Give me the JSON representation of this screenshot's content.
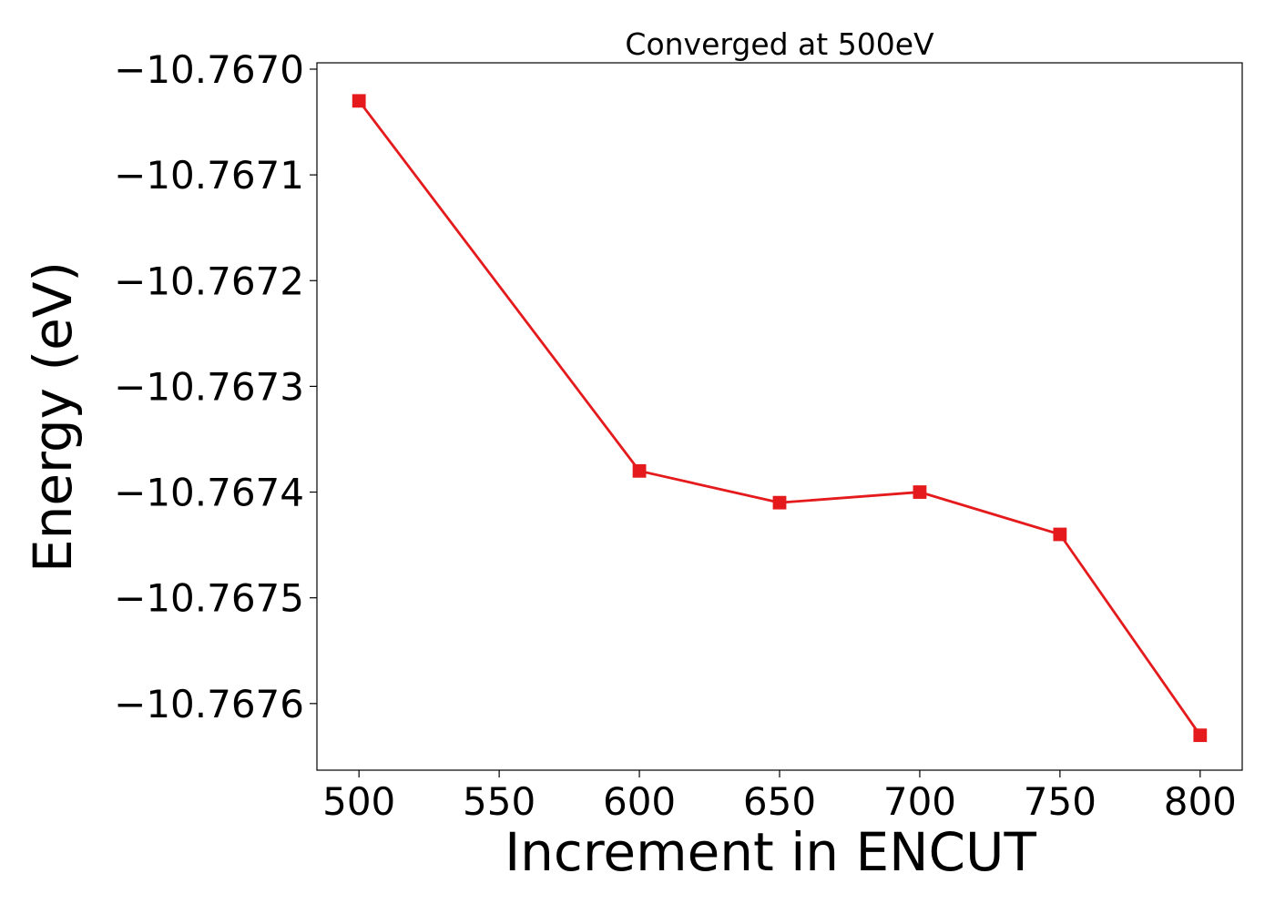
{
  "chart_data": {
    "type": "line",
    "title": "Converged at 500eV",
    "xlabel": "Increment in ENCUT",
    "ylabel": "Energy (eV)",
    "x": [
      500,
      600,
      650,
      700,
      750,
      800
    ],
    "series": [
      {
        "values": [
          -10.76703,
          -10.76738,
          -10.76741,
          -10.7674,
          -10.76744,
          -10.76763
        ],
        "color": "#e41a1c",
        "marker": "square"
      }
    ],
    "xlim": [
      485,
      815
    ],
    "ylim": [
      -10.767663,
      -10.766994
    ],
    "xticks": [
      500,
      550,
      600,
      650,
      700,
      750,
      800
    ],
    "xtick_labels": [
      "500",
      "550",
      "600",
      "650",
      "700",
      "750",
      "800"
    ],
    "yticks": [
      -10.767,
      -10.7671,
      -10.7672,
      -10.7673,
      -10.7674,
      -10.7675,
      -10.7676
    ],
    "ytick_labels": [
      "−10.7670",
      "−10.7671",
      "−10.7672",
      "−10.7673",
      "−10.7674",
      "−10.7675",
      "−10.7676"
    ],
    "grid": false,
    "legend": "none"
  }
}
